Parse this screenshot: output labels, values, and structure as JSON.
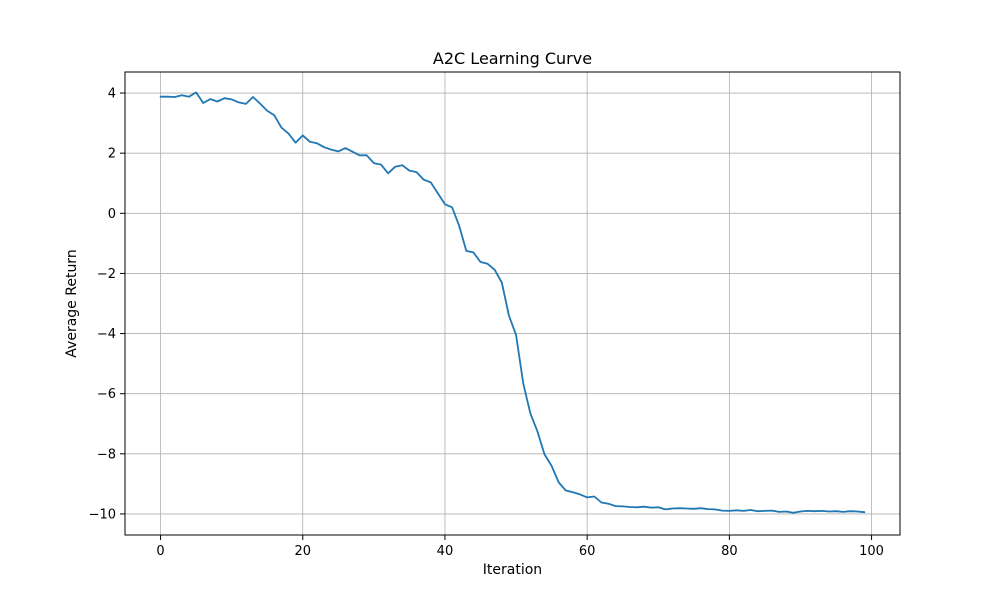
{
  "chart_data": {
    "type": "line",
    "title": "A2C Learning Curve",
    "xlabel": "Iteration",
    "ylabel": "Average Return",
    "xlim": [
      -5,
      104
    ],
    "ylim": [
      -10.7,
      4.7
    ],
    "xticks": [
      0,
      20,
      40,
      60,
      80,
      100
    ],
    "yticks": [
      4,
      2,
      0,
      -2,
      -4,
      -6,
      -8,
      -10
    ],
    "xtick_labels": [
      "0",
      "20",
      "40",
      "60",
      "80",
      "100"
    ],
    "ytick_labels": [
      "4",
      "2",
      "0",
      "−2",
      "−4",
      "−6",
      "−8",
      "−10"
    ],
    "grid": true,
    "line_color": "#1f77b4",
    "series": [
      {
        "x": [
          0,
          1,
          2,
          3,
          4,
          5,
          6,
          7,
          8,
          9,
          10,
          11,
          12,
          13,
          14,
          15,
          16,
          17,
          18,
          19,
          20,
          21,
          22,
          23,
          24,
          25,
          26,
          27,
          28,
          29,
          30,
          31,
          32,
          33,
          34,
          35,
          36,
          37,
          38,
          39,
          40,
          41,
          42,
          43,
          44,
          45,
          46,
          47,
          48,
          49,
          50,
          51,
          52,
          53,
          54,
          55,
          56,
          57,
          58,
          59,
          60,
          61,
          62,
          63,
          64,
          65,
          66,
          67,
          68,
          69,
          70,
          71,
          72,
          73,
          74,
          75,
          76,
          77,
          78,
          79,
          80,
          81,
          82,
          83,
          84,
          85,
          86,
          87,
          88,
          89,
          90,
          91,
          92,
          93,
          94,
          95,
          96,
          97,
          98,
          99
        ],
        "values": [
          3.88,
          3.88,
          3.87,
          3.93,
          3.88,
          4.02,
          3.67,
          3.8,
          3.72,
          3.83,
          3.79,
          3.69,
          3.64,
          3.87,
          3.65,
          3.41,
          3.26,
          2.85,
          2.65,
          2.35,
          2.59,
          2.38,
          2.33,
          2.2,
          2.12,
          2.06,
          2.17,
          2.05,
          1.93,
          1.93,
          1.67,
          1.62,
          1.33,
          1.55,
          1.6,
          1.42,
          1.37,
          1.12,
          1.03,
          0.67,
          0.3,
          0.2,
          -0.42,
          -1.25,
          -1.3,
          -1.62,
          -1.68,
          -1.88,
          -2.3,
          -3.4,
          -4.05,
          -5.65,
          -6.65,
          -7.25,
          -8.02,
          -8.4,
          -8.95,
          -9.22,
          -9.28,
          -9.35,
          -9.45,
          -9.42,
          -9.62,
          -9.66,
          -9.74,
          -9.75,
          -9.77,
          -9.78,
          -9.76,
          -9.79,
          -9.78,
          -9.85,
          -9.82,
          -9.81,
          -9.82,
          -9.83,
          -9.81,
          -9.84,
          -9.85,
          -9.89,
          -9.9,
          -9.88,
          -9.9,
          -9.87,
          -9.91,
          -9.9,
          -9.89,
          -9.93,
          -9.92,
          -9.96,
          -9.92,
          -9.9,
          -9.91,
          -9.9,
          -9.92,
          -9.91,
          -9.93,
          -9.91,
          -9.92,
          -9.94
        ]
      }
    ]
  }
}
